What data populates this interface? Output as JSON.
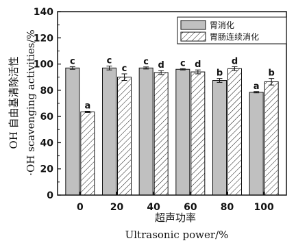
{
  "chart_data": {
    "type": "bar",
    "categories": [
      "0",
      "20",
      "40",
      "60",
      "80",
      "100"
    ],
    "xlabel_zh": "超声功率",
    "xlabel_en": "Ultrasonic power/%",
    "ylabel_zh": "OH 自由基清除活性",
    "ylabel_en": "·OH scavenging activities/%",
    "ylim": [
      0,
      140
    ],
    "yticks": [
      0,
      20,
      40,
      60,
      80,
      100,
      120,
      140
    ],
    "legend_position": "top-right",
    "series": [
      {
        "name": "胃消化",
        "pattern": "solid",
        "color": "#c0c0c0",
        "values": [
          97,
          97,
          97,
          96,
          87.5,
          78.5
        ],
        "errors": [
          1,
          1.5,
          0.8,
          0.5,
          1.5,
          0.5
        ],
        "labels": [
          "c",
          "c",
          "c",
          "c",
          "b",
          "a"
        ]
      },
      {
        "name": "胃肠连续消化",
        "pattern": "hatched",
        "color": "#ffffff",
        "values": [
          63.5,
          90,
          93.5,
          94,
          96.5,
          86.5
        ],
        "errors": [
          0.5,
          2.5,
          1.5,
          1.5,
          1.5,
          2.5
        ],
        "labels": [
          "a",
          "c",
          "d",
          "d",
          "d",
          "b"
        ]
      }
    ]
  }
}
